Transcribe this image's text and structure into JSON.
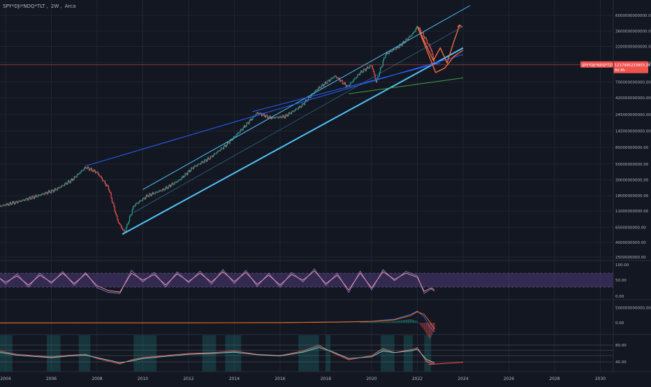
{
  "header": {
    "symbol": "SPY*DJI*NDQ*TLT",
    "interval": "2W",
    "exchange": "Arca"
  },
  "colors": {
    "background": "#131722",
    "grid": "#1f2430",
    "axis_text": "#b2b5be",
    "candle_up": "#26a69a",
    "candle_down": "#ef5350",
    "trend_primary": "#4fc3f7",
    "trend_secondary": "#2962ff",
    "trend_tertiary": "#43a047",
    "projection": "#ff7043",
    "rsi_band": "#7e57c2",
    "macd_line": "#2962ff",
    "signal_line": "#ff6d00",
    "osc_green": "#26a69a",
    "osc_red": "#ef5350"
  },
  "chart_data": [
    {
      "type": "candlestick",
      "pane": "price",
      "scale": "log",
      "title": "SPY*DJI*NDQ*TLT",
      "x_tick_labels": [
        "2004",
        "2006",
        "2008",
        "2010",
        "2012",
        "2014",
        "2016",
        "2018",
        "2020",
        "2022",
        "2024",
        "2026",
        "2028",
        "2030"
      ],
      "y_tick_labels": [
        "6000000000000.00",
        "3600000000000.00",
        "2200000000000.00",
        "1300000000000.00",
        "700000000000.00",
        "420000000000.00",
        "245000000000.00",
        "145000000000.00",
        "85000000000.00",
        "50000000000.00",
        "30000000000.00",
        "18000000000.00",
        "11000000000.00",
        "6500000000.00",
        "4000000000.00",
        "2500000000.00"
      ],
      "ylim": [
        2500000000,
        8200000000000
      ],
      "last_price_label": "SPY*DJI*NDQ*TLT",
      "last_price_value": "1217995233903.28",
      "last_price_note": "8d 8h",
      "last_price_level": 1217995233903.28,
      "series": [
        {
          "name": "",
          "points": [
            {
              "t": 2003.0,
              "v": 10000000000
            },
            {
              "t": 2003.8,
              "v": 13000000000
            },
            {
              "t": 2004.6,
              "v": 15000000000
            },
            {
              "t": 2005.4,
              "v": 18000000000
            },
            {
              "t": 2006.2,
              "v": 22000000000
            },
            {
              "t": 2006.9,
              "v": 30000000000
            },
            {
              "t": 2007.5,
              "v": 45000000000
            },
            {
              "t": 2008.0,
              "v": 38000000000
            },
            {
              "t": 2008.5,
              "v": 23000000000
            },
            {
              "t": 2008.9,
              "v": 8000000000
            },
            {
              "t": 2009.2,
              "v": 5500000000
            },
            {
              "t": 2009.6,
              "v": 13000000000
            },
            {
              "t": 2010.2,
              "v": 18000000000
            },
            {
              "t": 2010.9,
              "v": 22000000000
            },
            {
              "t": 2011.6,
              "v": 30000000000
            },
            {
              "t": 2012.2,
              "v": 45000000000
            },
            {
              "t": 2012.9,
              "v": 60000000000
            },
            {
              "t": 2013.6,
              "v": 90000000000
            },
            {
              "t": 2014.3,
              "v": 150000000000
            },
            {
              "t": 2015.0,
              "v": 260000000000
            },
            {
              "t": 2015.6,
              "v": 220000000000
            },
            {
              "t": 2016.2,
              "v": 230000000000
            },
            {
              "t": 2016.9,
              "v": 320000000000
            },
            {
              "t": 2017.6,
              "v": 550000000000
            },
            {
              "t": 2018.4,
              "v": 850000000000
            },
            {
              "t": 2018.95,
              "v": 600000000000
            },
            {
              "t": 2019.5,
              "v": 950000000000
            },
            {
              "t": 2020.0,
              "v": 1200000000000
            },
            {
              "t": 2020.2,
              "v": 700000000000
            },
            {
              "t": 2020.6,
              "v": 1700000000000
            },
            {
              "t": 2021.2,
              "v": 2200000000000
            },
            {
              "t": 2021.8,
              "v": 3300000000000
            },
            {
              "t": 2022.0,
              "v": 4200000000000
            },
            {
              "t": 2022.3,
              "v": 3000000000000
            },
            {
              "t": 2022.6,
              "v": 2000000000000
            },
            {
              "t": 2022.75,
              "v": 1218000000000
            }
          ]
        }
      ],
      "trendlines": [
        {
          "kind": "channel-upper",
          "color": "trend_primary",
          "t1": 2010.0,
          "v1": 22000000000,
          "t2": 2024.3,
          "v2": 8200000000000
        },
        {
          "kind": "channel-lower",
          "color": "trend_primary",
          "t1": 2009.1,
          "v1": 5200000000,
          "t2": 2024.0,
          "v2": 2100000000000,
          "bold": true
        },
        {
          "kind": "channel-mid",
          "color": "trend_primary",
          "t1": 2009.6,
          "v1": 10500000000,
          "t2": 2024.0,
          "v2": 4200000000000,
          "thin": true
        },
        {
          "kind": "resistance",
          "color": "trend_secondary",
          "t1": 2007.5,
          "v1": 47000000000,
          "t2": 2024.0,
          "v2": 1700000000000
        },
        {
          "kind": "resistance-2",
          "color": "trend_secondary",
          "t1": 2014.8,
          "v1": 270000000000,
          "t2": 2023.0,
          "v2": 1300000000000
        },
        {
          "kind": "support",
          "color": "trend_tertiary",
          "t1": 2019.0,
          "v1": 480000000000,
          "t2": 2024.0,
          "v2": 800000000000
        }
      ],
      "projections": [
        {
          "points": [
            [
              2022.0,
              4200000000000
            ],
            [
              2022.7,
              1400000000000
            ],
            [
              2023.0,
              2100000000000
            ],
            [
              2023.3,
              1300000000000
            ],
            [
              2023.6,
              2600000000000
            ],
            [
              2023.85,
              4400000000000
            ]
          ]
        },
        {
          "points": [
            [
              2022.0,
              4200000000000
            ],
            [
              2022.8,
              950000000000
            ],
            [
              2023.2,
              1100000000000
            ],
            [
              2023.6,
              1600000000000
            ],
            [
              2024.0,
              1950000000000
            ]
          ]
        }
      ]
    },
    {
      "type": "line",
      "pane": "rsi",
      "y_tick_labels": [
        "100.00",
        "50.00",
        "0.00"
      ],
      "ylim": [
        0,
        100
      ],
      "band": [
        30,
        70
      ],
      "series": [
        {
          "name": "",
          "points": [
            [
              2003.0,
              55
            ],
            [
              2003.5,
              72
            ],
            [
              2004.0,
              38
            ],
            [
              2004.5,
              68
            ],
            [
              2005.0,
              30
            ],
            [
              2005.5,
              70
            ],
            [
              2006.0,
              40
            ],
            [
              2006.5,
              75
            ],
            [
              2007.0,
              35
            ],
            [
              2007.5,
              72
            ],
            [
              2008.0,
              28
            ],
            [
              2008.5,
              15
            ],
            [
              2009.0,
              12
            ],
            [
              2009.5,
              78
            ],
            [
              2010.0,
              45
            ],
            [
              2010.5,
              72
            ],
            [
              2011.0,
              30
            ],
            [
              2011.5,
              74
            ],
            [
              2012.0,
              42
            ],
            [
              2012.5,
              76
            ],
            [
              2013.0,
              38
            ],
            [
              2013.5,
              80
            ],
            [
              2014.0,
              40
            ],
            [
              2014.5,
              78
            ],
            [
              2015.0,
              32
            ],
            [
              2015.5,
              70
            ],
            [
              2016.0,
              30
            ],
            [
              2016.5,
              72
            ],
            [
              2017.0,
              45
            ],
            [
              2017.5,
              82
            ],
            [
              2018.0,
              35
            ],
            [
              2018.5,
              70
            ],
            [
              2019.0,
              15
            ],
            [
              2019.5,
              76
            ],
            [
              2020.0,
              22
            ],
            [
              2020.5,
              80
            ],
            [
              2021.0,
              48
            ],
            [
              2021.5,
              75
            ],
            [
              2022.0,
              62
            ],
            [
              2022.3,
              12
            ],
            [
              2022.6,
              25
            ],
            [
              2022.75,
              18
            ]
          ]
        },
        {
          "name": "",
          "points": [
            [
              2003.0,
              50
            ],
            [
              2003.5,
              66
            ],
            [
              2004.0,
              44
            ],
            [
              2004.5,
              62
            ],
            [
              2005.0,
              36
            ],
            [
              2005.5,
              64
            ],
            [
              2006.0,
              44
            ],
            [
              2006.5,
              70
            ],
            [
              2007.0,
              40
            ],
            [
              2007.5,
              68
            ],
            [
              2008.0,
              34
            ],
            [
              2008.5,
              20
            ],
            [
              2009.0,
              16
            ],
            [
              2009.5,
              70
            ],
            [
              2010.0,
              50
            ],
            [
              2010.5,
              66
            ],
            [
              2011.0,
              36
            ],
            [
              2011.5,
              68
            ],
            [
              2012.0,
              46
            ],
            [
              2012.5,
              70
            ],
            [
              2013.0,
              44
            ],
            [
              2013.5,
              74
            ],
            [
              2014.0,
              46
            ],
            [
              2014.5,
              72
            ],
            [
              2015.0,
              38
            ],
            [
              2015.5,
              64
            ],
            [
              2016.0,
              36
            ],
            [
              2016.5,
              66
            ],
            [
              2017.0,
              50
            ],
            [
              2017.5,
              76
            ],
            [
              2018.0,
              40
            ],
            [
              2018.5,
              64
            ],
            [
              2019.0,
              22
            ],
            [
              2019.5,
              70
            ],
            [
              2020.0,
              28
            ],
            [
              2020.5,
              74
            ],
            [
              2021.0,
              52
            ],
            [
              2021.5,
              70
            ],
            [
              2022.0,
              58
            ],
            [
              2022.3,
              18
            ],
            [
              2022.6,
              28
            ],
            [
              2022.75,
              22
            ]
          ]
        }
      ]
    },
    {
      "type": "line",
      "pane": "macd",
      "y_tick_labels": [
        "500000000000.00",
        "0.00"
      ],
      "ylim": [
        -320000000000,
        700000000000
      ],
      "series": [
        {
          "name": "",
          "points": [
            [
              2003.0,
              0
            ],
            [
              2008.0,
              1000000000
            ],
            [
              2012.0,
              2000000000
            ],
            [
              2016.0,
              8000000000
            ],
            [
              2018.5,
              30000000000
            ],
            [
              2020.0,
              55000000000
            ],
            [
              2021.0,
              120000000000
            ],
            [
              2021.7,
              280000000000
            ],
            [
              2022.0,
              390000000000
            ],
            [
              2022.3,
              200000000000
            ],
            [
              2022.55,
              -150000000000
            ],
            [
              2022.75,
              -290000000000
            ]
          ]
        },
        {
          "name": "",
          "points": [
            [
              2003.0,
              0
            ],
            [
              2008.0,
              1000000000
            ],
            [
              2012.0,
              2000000000
            ],
            [
              2016.0,
              7000000000
            ],
            [
              2018.5,
              25000000000
            ],
            [
              2020.0,
              45000000000
            ],
            [
              2021.0,
              100000000000
            ],
            [
              2021.7,
              240000000000
            ],
            [
              2022.0,
              370000000000
            ],
            [
              2022.3,
              280000000000
            ],
            [
              2022.55,
              30000000000
            ],
            [
              2022.75,
              -210000000000
            ]
          ]
        }
      ]
    },
    {
      "type": "line",
      "pane": "oscillator",
      "y_tick_labels": [
        "80.00",
        "40.00"
      ],
      "ylim": [
        20,
        100
      ],
      "hlines": [
        80,
        68,
        55,
        40
      ],
      "series": [
        {
          "name": "",
          "points": [
            [
              2003.0,
              60
            ],
            [
              2003.8,
              65
            ],
            [
              2004.5,
              58
            ],
            [
              2005.2,
              55
            ],
            [
              2006.0,
              52
            ],
            [
              2006.8,
              56
            ],
            [
              2007.5,
              58
            ],
            [
              2008.0,
              48
            ],
            [
              2008.6,
              40
            ],
            [
              2009.0,
              35
            ],
            [
              2009.5,
              45
            ],
            [
              2010.0,
              50
            ],
            [
              2011.0,
              55
            ],
            [
              2012.0,
              60
            ],
            [
              2013.0,
              62
            ],
            [
              2014.0,
              66
            ],
            [
              2015.0,
              58
            ],
            [
              2016.0,
              55
            ],
            [
              2017.0,
              66
            ],
            [
              2017.7,
              80
            ],
            [
              2018.3,
              62
            ],
            [
              2019.0,
              45
            ],
            [
              2020.0,
              55
            ],
            [
              2020.5,
              72
            ],
            [
              2021.0,
              62
            ],
            [
              2021.8,
              70
            ],
            [
              2022.0,
              74
            ],
            [
              2022.4,
              40
            ],
            [
              2022.75,
              34
            ]
          ]
        },
        {
          "name": "",
          "points": [
            [
              2003.0,
              58
            ],
            [
              2003.8,
              62
            ],
            [
              2004.5,
              56
            ],
            [
              2005.2,
              53
            ],
            [
              2006.0,
              50
            ],
            [
              2006.8,
              54
            ],
            [
              2007.5,
              56
            ],
            [
              2008.0,
              50
            ],
            [
              2008.6,
              43
            ],
            [
              2009.0,
              38
            ],
            [
              2009.5,
              42
            ],
            [
              2010.0,
              48
            ],
            [
              2011.0,
              53
            ],
            [
              2012.0,
              58
            ],
            [
              2013.0,
              60
            ],
            [
              2014.0,
              63
            ],
            [
              2015.0,
              57
            ],
            [
              2016.0,
              54
            ],
            [
              2017.0,
              63
            ],
            [
              2017.7,
              74
            ],
            [
              2018.3,
              64
            ],
            [
              2019.0,
              48
            ],
            [
              2020.0,
              52
            ],
            [
              2020.5,
              66
            ],
            [
              2021.0,
              62
            ],
            [
              2021.8,
              67
            ],
            [
              2022.0,
              70
            ],
            [
              2022.4,
              46
            ],
            [
              2022.75,
              38
            ]
          ]
        }
      ],
      "trendline": {
        "t1": 2022.5,
        "v1": 34,
        "t2": 2024.0,
        "v2": 39
      }
    }
  ]
}
